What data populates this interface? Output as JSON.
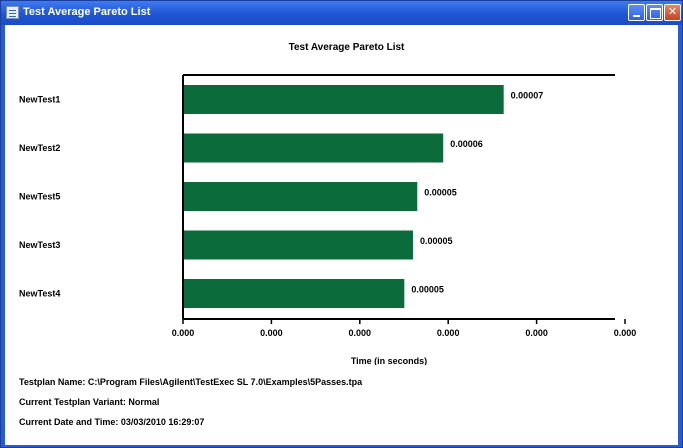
{
  "window": {
    "title": "Test Average Pareto List"
  },
  "chart_data": {
    "type": "bar",
    "orientation": "horizontal",
    "title": "Test Average Pareto List",
    "xlabel": "Time (in seconds)",
    "ylabel": "",
    "categories": [
      "NewTest1",
      "NewTest2",
      "NewTest5",
      "NewTest3",
      "NewTest4"
    ],
    "values": [
      7e-05,
      6e-05,
      5e-05,
      5e-05,
      5e-05
    ],
    "relative_lengths": [
      0.74,
      0.6,
      0.54,
      0.53,
      0.51
    ],
    "value_labels": [
      "0.00007",
      "0.00006",
      "0.00005",
      "0.00005",
      "0.00005"
    ],
    "x_tick_labels": [
      "0.000",
      "0.000",
      "0.000",
      "0.000",
      "0.000",
      "0.000"
    ],
    "grid": false,
    "legend": "none",
    "bar_color": "#0c6b3a"
  },
  "info": {
    "testplan_name": "Testplan Name: C:\\Program Files\\Agilent\\TestExec SL 7.0\\Examples\\5Passes.tpa",
    "variant": "Current Testplan Variant: Normal",
    "datetime": "Current Date and Time: 03/03/2010 16:29:07"
  }
}
